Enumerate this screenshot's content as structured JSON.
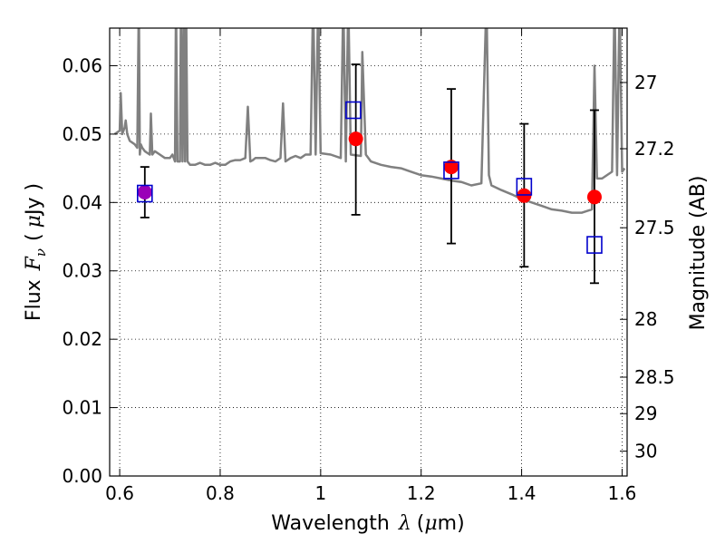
{
  "chart_data": {
    "type": "scatter",
    "x_range": [
      0.58,
      1.61
    ],
    "y_range": [
      0.0,
      0.0655
    ],
    "grid": true,
    "xlabel": {
      "prefix": "Wavelength",
      "symbol": "λ",
      "unit_open": "(",
      "unit_mu": "μ",
      "unit_rest": "m)"
    },
    "ylabel": {
      "prefix": "Flux",
      "symbol": "F",
      "subscript": "ν",
      "unit_open": "(",
      "unit_mu": "μ",
      "unit_rest": "Jy )"
    },
    "y2label": "Magnitude (AB)",
    "x_ticks": [
      {
        "value": 0.6,
        "label": "0.6"
      },
      {
        "value": 0.8,
        "label": "0.8"
      },
      {
        "value": 1.0,
        "label": "1"
      },
      {
        "value": 1.2,
        "label": "1.2"
      },
      {
        "value": 1.4,
        "label": "1.4"
      },
      {
        "value": 1.6,
        "label": "1.6"
      }
    ],
    "y_ticks": [
      {
        "value": 0.0,
        "label": "0.00"
      },
      {
        "value": 0.01,
        "label": "0.01"
      },
      {
        "value": 0.02,
        "label": "0.02"
      },
      {
        "value": 0.03,
        "label": "0.03"
      },
      {
        "value": 0.04,
        "label": "0.04"
      },
      {
        "value": 0.05,
        "label": "0.05"
      },
      {
        "value": 0.06,
        "label": "0.06"
      }
    ],
    "y2_ticks": [
      {
        "mag": 27,
        "label": "27"
      },
      {
        "mag": 27.2,
        "label": "27.2"
      },
      {
        "mag": 27.5,
        "label": "27.5"
      },
      {
        "mag": 28,
        "label": "28"
      },
      {
        "mag": 28.5,
        "label": "28.5"
      },
      {
        "mag": 29,
        "label": "29"
      },
      {
        "mag": 30,
        "label": "30"
      }
    ],
    "observed": [
      {
        "x": 0.65,
        "y": 0.0415,
        "yerr_low": 0.0378,
        "yerr_high": 0.0452,
        "color": "#9a00b8"
      },
      {
        "x": 1.07,
        "y": 0.0493,
        "yerr_low": 0.0382,
        "yerr_high": 0.0602,
        "color": "#ff0000"
      },
      {
        "x": 1.26,
        "y": 0.0452,
        "yerr_low": 0.034,
        "yerr_high": 0.0566,
        "color": "#ff0000"
      },
      {
        "x": 1.405,
        "y": 0.041,
        "yerr_low": 0.0306,
        "yerr_high": 0.0515,
        "color": "#ff0000"
      },
      {
        "x": 1.545,
        "y": 0.0408,
        "yerr_low": 0.0282,
        "yerr_high": 0.0535,
        "color": "#ff0000"
      }
    ],
    "model_bands": [
      {
        "x": 0.65,
        "y": 0.0413
      },
      {
        "x": 1.065,
        "y": 0.0535
      },
      {
        "x": 1.26,
        "y": 0.0447
      },
      {
        "x": 1.405,
        "y": 0.0423
      },
      {
        "x": 1.545,
        "y": 0.0338
      }
    ],
    "spectrum": {
      "color": "#808080",
      "x": [
        0.59,
        0.6,
        0.602,
        0.605,
        0.61,
        0.612,
        0.615,
        0.62,
        0.63,
        0.635,
        0.638,
        0.64,
        0.642,
        0.645,
        0.65,
        0.66,
        0.662,
        0.665,
        0.67,
        0.68,
        0.69,
        0.7,
        0.705,
        0.71,
        0.712,
        0.715,
        0.72,
        0.722,
        0.725,
        0.728,
        0.73,
        0.732,
        0.735,
        0.74,
        0.75,
        0.76,
        0.77,
        0.78,
        0.79,
        0.8,
        0.81,
        0.82,
        0.83,
        0.84,
        0.85,
        0.855,
        0.86,
        0.865,
        0.87,
        0.88,
        0.89,
        0.9,
        0.91,
        0.92,
        0.925,
        0.93,
        0.94,
        0.95,
        0.96,
        0.97,
        0.98,
        0.985,
        0.99,
        0.995,
        1.0,
        1.02,
        1.04,
        1.045,
        1.05,
        1.055,
        1.06,
        1.08,
        1.083,
        1.09,
        1.1,
        1.12,
        1.14,
        1.16,
        1.18,
        1.2,
        1.22,
        1.24,
        1.26,
        1.28,
        1.3,
        1.32,
        1.33,
        1.335,
        1.34,
        1.36,
        1.38,
        1.4,
        1.42,
        1.44,
        1.46,
        1.48,
        1.5,
        1.52,
        1.54,
        1.545,
        1.55,
        1.56,
        1.58,
        1.585,
        1.59,
        1.595,
        1.6,
        1.605
      ],
      "y": [
        0.05,
        0.0505,
        0.056,
        0.05,
        0.051,
        0.052,
        0.05,
        0.049,
        0.0485,
        0.048,
        0.07,
        0.047,
        0.0485,
        0.048,
        0.0475,
        0.047,
        0.053,
        0.047,
        0.0475,
        0.047,
        0.0465,
        0.0465,
        0.047,
        0.046,
        0.07,
        0.046,
        0.046,
        0.07,
        0.046,
        0.07,
        0.046,
        0.07,
        0.046,
        0.0455,
        0.0455,
        0.0458,
        0.0455,
        0.0455,
        0.0458,
        0.0455,
        0.0455,
        0.046,
        0.0462,
        0.0462,
        0.0465,
        0.054,
        0.046,
        0.0462,
        0.0465,
        0.0465,
        0.0465,
        0.0462,
        0.046,
        0.0465,
        0.0545,
        0.046,
        0.0465,
        0.0468,
        0.0465,
        0.047,
        0.047,
        0.07,
        0.047,
        0.07,
        0.0472,
        0.047,
        0.0465,
        0.07,
        0.046,
        0.07,
        0.047,
        0.0468,
        0.062,
        0.047,
        0.046,
        0.0455,
        0.0452,
        0.045,
        0.0445,
        0.044,
        0.0438,
        0.0435,
        0.0432,
        0.043,
        0.0425,
        0.0428,
        0.07,
        0.044,
        0.0425,
        0.0418,
        0.0412,
        0.0405,
        0.04,
        0.0395,
        0.039,
        0.0388,
        0.0385,
        0.0385,
        0.039,
        0.06,
        0.0435,
        0.0435,
        0.0445,
        0.07,
        0.044,
        0.07,
        0.0445,
        0.045
      ]
    }
  }
}
